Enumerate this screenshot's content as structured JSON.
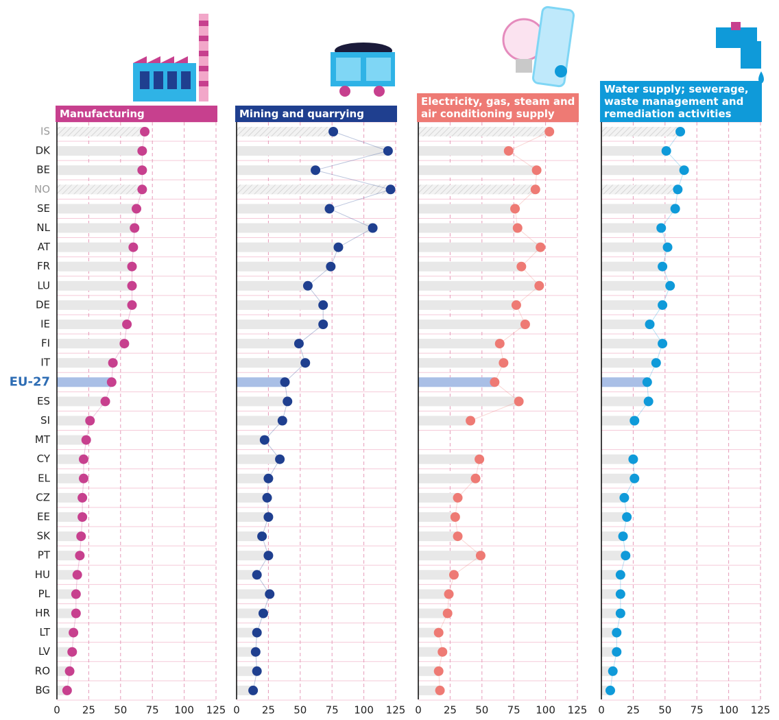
{
  "chart_data": {
    "type": "dot",
    "categories": [
      "IS",
      "DK",
      "BE",
      "NO",
      "SE",
      "NL",
      "AT",
      "FR",
      "LU",
      "DE",
      "IE",
      "FI",
      "IT",
      "EU-27",
      "ES",
      "SI",
      "MT",
      "CY",
      "EL",
      "CZ",
      "EE",
      "SK",
      "PT",
      "HU",
      "PL",
      "HR",
      "LT",
      "LV",
      "RO",
      "BG"
    ],
    "highlight": 13,
    "hatched": [
      0,
      3
    ],
    "xlim": [
      0,
      125
    ],
    "xticks": [
      0,
      25,
      50,
      75,
      100,
      125
    ],
    "grid": true,
    "series": [
      {
        "name": "Manufacturing",
        "color": "#c7408e",
        "values": [
          69,
          67,
          67,
          67,
          62.5,
          61,
          60,
          59,
          59,
          59,
          55,
          53,
          44,
          43,
          38,
          26,
          23,
          21,
          21,
          20,
          20,
          19,
          18,
          16,
          15,
          15,
          13,
          12,
          10,
          8
        ]
      },
      {
        "name": "Mining and quarrying",
        "color": "#1f3f8f",
        "values": [
          76,
          119,
          62,
          121,
          73,
          107,
          80,
          74,
          56,
          68,
          68,
          49,
          54,
          38,
          40,
          36,
          22,
          34,
          25,
          24,
          25,
          20,
          25,
          16,
          26,
          21,
          16,
          15,
          16,
          13
        ]
      },
      {
        "name": "Electricity, gas, steam and air conditioning supply",
        "color": "#ee7a74",
        "values": [
          103,
          71,
          93,
          92,
          76,
          78,
          96,
          81,
          95,
          77,
          84,
          64,
          67,
          60,
          79,
          41,
          null,
          48,
          45,
          31,
          29,
          31,
          49,
          28,
          24,
          23,
          16,
          19,
          16,
          17
        ]
      },
      {
        "name": "Water supply; sewerage, waste management and remediation activities",
        "color": "#0f9ad9",
        "values": [
          62,
          51,
          65,
          60,
          58,
          47,
          52,
          48,
          54,
          48,
          38,
          48,
          43,
          36,
          37,
          26,
          null,
          25,
          26,
          18,
          20,
          17,
          19,
          15,
          15,
          15,
          12,
          12,
          9,
          7
        ]
      }
    ]
  }
}
